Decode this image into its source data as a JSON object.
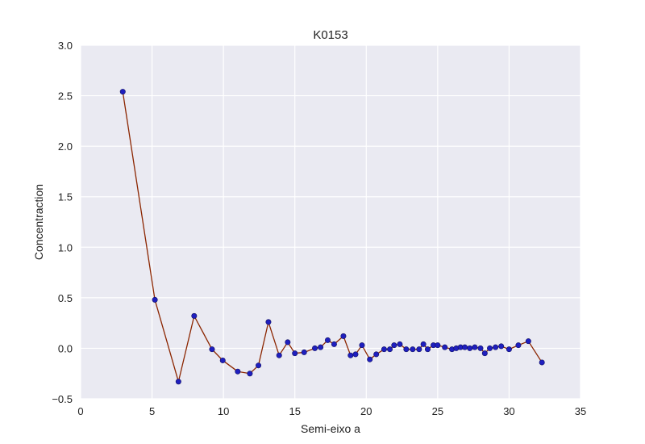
{
  "chart_data": {
    "type": "line",
    "title": "K0153",
    "xlabel": "Semi-eixo a",
    "ylabel": "Concentraction",
    "xlim": [
      0,
      35
    ],
    "ylim": [
      -0.5,
      3.0
    ],
    "xticks": [
      0,
      5,
      10,
      15,
      20,
      25,
      30,
      35
    ],
    "yticks": [
      -0.5,
      0.0,
      0.5,
      1.0,
      1.5,
      2.0,
      2.5,
      3.0
    ],
    "xtick_labels": [
      "0",
      "5",
      "10",
      "15",
      "20",
      "25",
      "30",
      "35"
    ],
    "ytick_labels": [
      "−0.5",
      "0.0",
      "0.5",
      "1.0",
      "1.5",
      "2.0",
      "2.5",
      "3.0"
    ],
    "grid": true,
    "colors": {
      "background": "#eaeaf2",
      "grid": "#ffffff",
      "line": "#8b2500",
      "marker": "#1f1fbf"
    },
    "series": [
      {
        "x": [
          2.95,
          5.2,
          6.85,
          7.95,
          9.2,
          9.95,
          11.0,
          11.85,
          12.45,
          13.15,
          13.9,
          14.5,
          15.0,
          15.65,
          16.4,
          16.8,
          17.3,
          17.75,
          18.4,
          18.9,
          19.25,
          19.7,
          20.25,
          20.7,
          21.25,
          21.65,
          21.95,
          22.35,
          22.8,
          23.25,
          23.7,
          24.0,
          24.3,
          24.7,
          25.0,
          25.5,
          26.0,
          26.3,
          26.6,
          26.9,
          27.25,
          27.6,
          28.0,
          28.3,
          28.65,
          29.05,
          29.45,
          30.0,
          30.65,
          31.35,
          32.3
        ],
        "y": [
          2.54,
          0.48,
          -0.33,
          0.32,
          -0.01,
          -0.12,
          -0.23,
          -0.25,
          -0.17,
          0.26,
          -0.07,
          0.06,
          -0.05,
          -0.04,
          0.0,
          0.01,
          0.08,
          0.04,
          0.12,
          -0.07,
          -0.06,
          0.03,
          -0.11,
          -0.06,
          -0.01,
          -0.01,
          0.03,
          0.04,
          -0.01,
          -0.01,
          -0.01,
          0.04,
          -0.01,
          0.03,
          0.03,
          0.01,
          -0.01,
          0.0,
          0.01,
          0.01,
          0.0,
          0.01,
          0.0,
          -0.05,
          0.0,
          0.01,
          0.02,
          -0.01,
          0.03,
          0.07,
          -0.14
        ]
      }
    ]
  }
}
